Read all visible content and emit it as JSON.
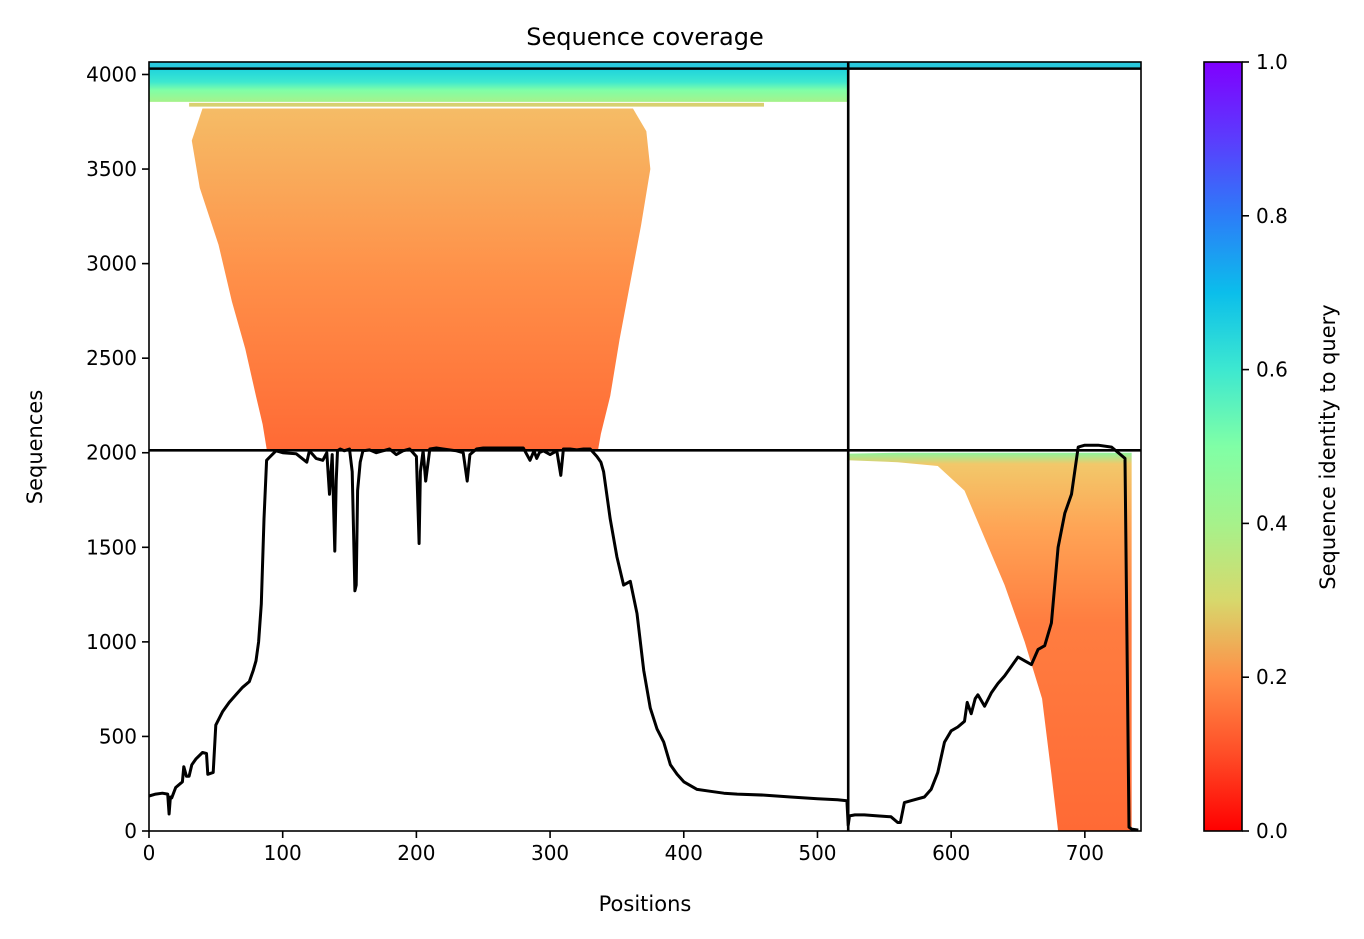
{
  "chart_data": {
    "type": "heatmap",
    "title": "Sequence coverage",
    "xlabel": "Positions",
    "ylabel": "Sequences",
    "colorbar_label": "Sequence identity to query",
    "colormap": "rainbow_r",
    "xlim": [
      0,
      742
    ],
    "ylim": [
      0,
      4066
    ],
    "x_ticks": [
      0,
      100,
      200,
      300,
      400,
      500,
      600,
      700
    ],
    "y_ticks": [
      0,
      500,
      1000,
      1500,
      2000,
      2500,
      3000,
      3500,
      4000
    ],
    "colorbar_range": [
      0.0,
      1.0
    ],
    "colorbar_ticks": [
      0.0,
      0.2,
      0.4,
      0.6,
      0.8,
      1.0
    ],
    "colorbar_tick_labels": [
      "0.0",
      "0.2",
      "0.4",
      "0.6",
      "0.8",
      "1.0"
    ],
    "chain_boundaries": {
      "x": [
        523
      ],
      "y": [
        2013,
        4031
      ]
    },
    "coverage_line": {
      "x": [
        0,
        5,
        10,
        14,
        15,
        16,
        17,
        20,
        25,
        26,
        28,
        30,
        32,
        35,
        40,
        43,
        44,
        48,
        50,
        55,
        60,
        65,
        70,
        75,
        78,
        80,
        82,
        84,
        86,
        88,
        90,
        95,
        100,
        110,
        118,
        120,
        125,
        130,
        133,
        135,
        137,
        139,
        140,
        141,
        143,
        146,
        150,
        152,
        154,
        155,
        156,
        158,
        160,
        165,
        170,
        175,
        180,
        185,
        190,
        195,
        200,
        202,
        203,
        205,
        207,
        210,
        215,
        220,
        230,
        235,
        238,
        240,
        245,
        250,
        260,
        270,
        280,
        285,
        288,
        290,
        292,
        295,
        300,
        305,
        308,
        310,
        315,
        320,
        325,
        330,
        335,
        338,
        340,
        345,
        350,
        355,
        360,
        365,
        370,
        375,
        380,
        385,
        390,
        395,
        400,
        410,
        420,
        430,
        440,
        460,
        480,
        500,
        515,
        522,
        523,
        524,
        528,
        535,
        545,
        555,
        560,
        562,
        565,
        570,
        580,
        585,
        590,
        595,
        600,
        605,
        610,
        612,
        615,
        618,
        620,
        625,
        630,
        635,
        640,
        645,
        650,
        655,
        660,
        665,
        670,
        675,
        680,
        685,
        690,
        695,
        700,
        710,
        720,
        730,
        733,
        735,
        740
      ],
      "y": [
        185,
        195,
        200,
        195,
        90,
        180,
        175,
        230,
        260,
        340,
        290,
        290,
        350,
        380,
        415,
        410,
        300,
        310,
        560,
        630,
        680,
        720,
        760,
        790,
        850,
        900,
        1000,
        1200,
        1650,
        1960,
        1975,
        2010,
        2000,
        1995,
        1950,
        2010,
        1970,
        1960,
        2000,
        1780,
        1990,
        1480,
        1850,
        2010,
        2020,
        2010,
        2020,
        1900,
        1270,
        1300,
        1800,
        1950,
        2010,
        2015,
        2000,
        2010,
        2020,
        1990,
        2010,
        2020,
        1980,
        1520,
        1900,
        2010,
        1850,
        2020,
        2025,
        2020,
        2010,
        2000,
        1850,
        1990,
        2020,
        2025,
        2025,
        2025,
        2025,
        1960,
        2010,
        1970,
        2000,
        2010,
        1990,
        2010,
        1880,
        2020,
        2020,
        2015,
        2020,
        2020,
        1980,
        1950,
        1900,
        1650,
        1450,
        1300,
        1320,
        1150,
        850,
        650,
        540,
        470,
        350,
        300,
        260,
        220,
        210,
        200,
        195,
        190,
        180,
        170,
        165,
        160,
        30,
        80,
        85,
        85,
        80,
        75,
        45,
        45,
        150,
        160,
        180,
        220,
        310,
        470,
        530,
        550,
        580,
        680,
        620,
        700,
        720,
        660,
        730,
        780,
        820,
        870,
        920,
        900,
        880,
        960,
        980,
        1100,
        1500,
        1680,
        1780,
        2030,
        2040,
        2040,
        2030,
        1970,
        20,
        10,
        5
      ]
    }
  }
}
